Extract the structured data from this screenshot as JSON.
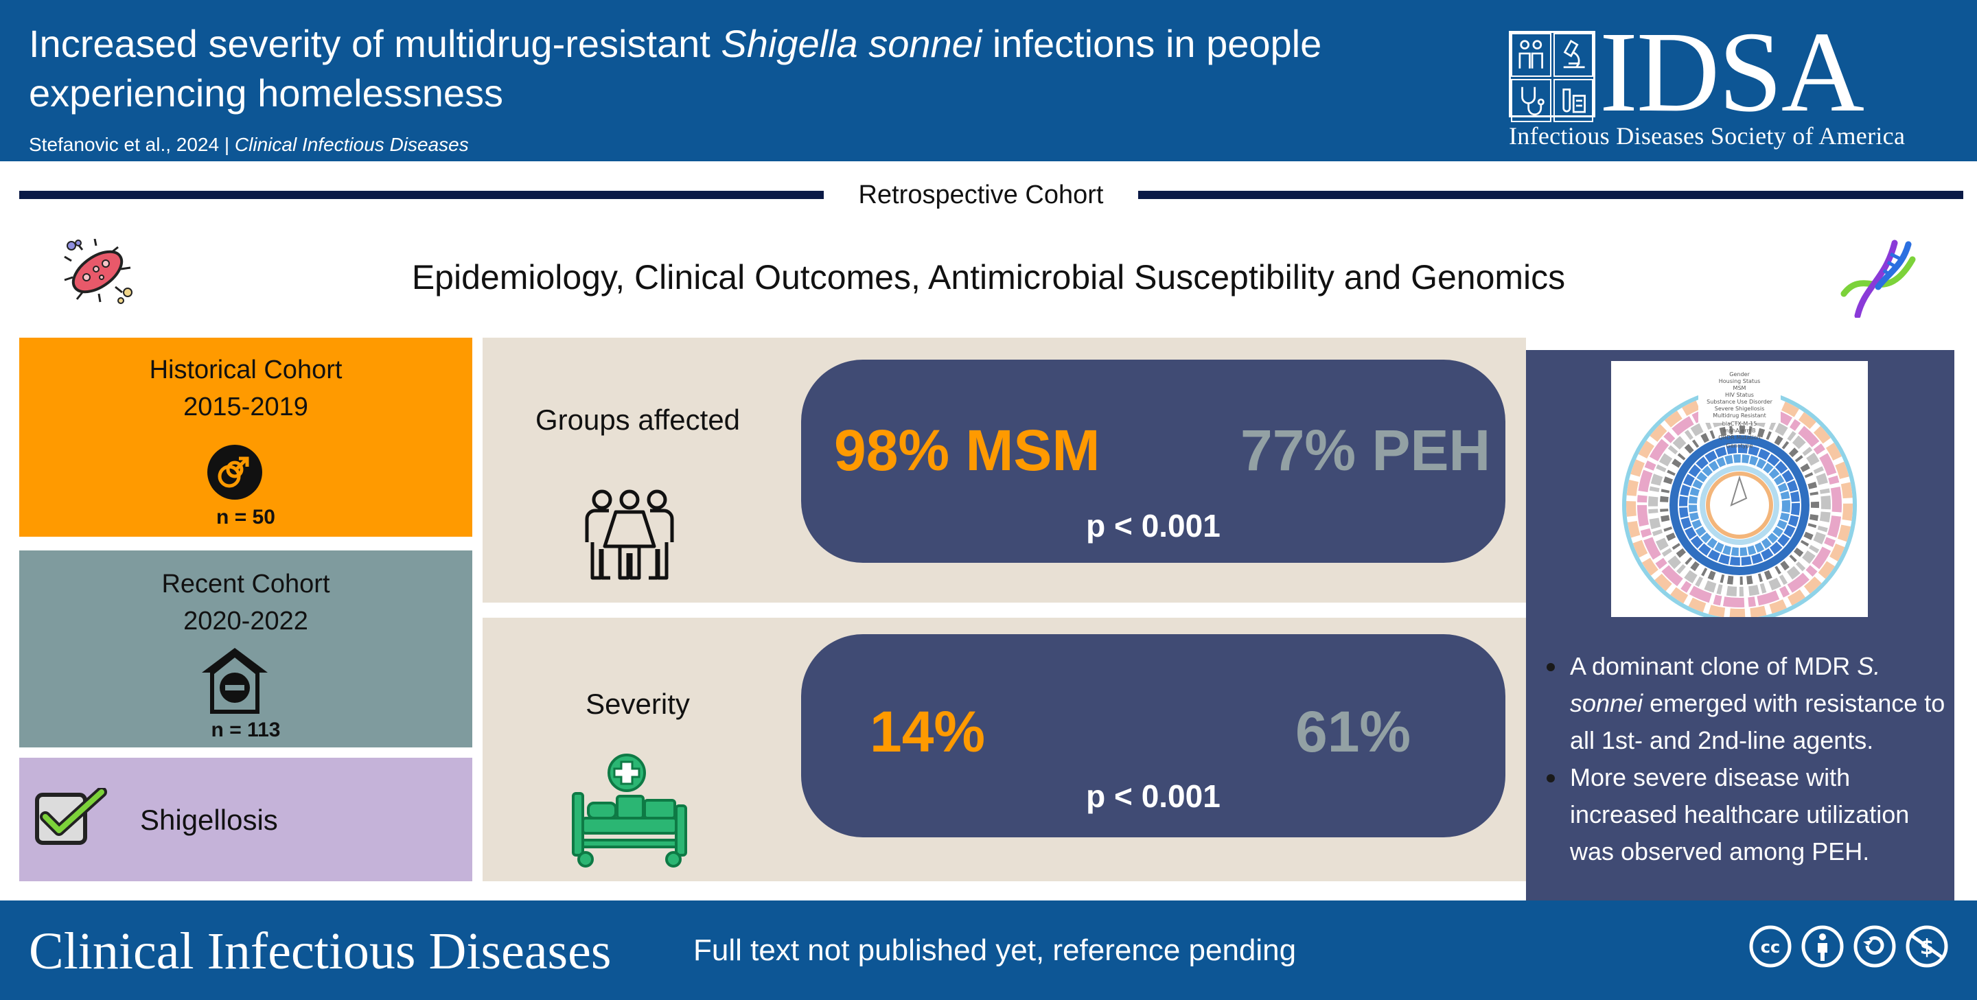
{
  "header": {
    "title_part1": "Increased severity of multidrug-resistant ",
    "title_italic": "Shigella sonnei",
    "title_part2": " infections in people experiencing homelessness",
    "citation_authors": "Stefanovic et al., 2024",
    "citation_separator": "|",
    "citation_journal": "Clinical Infectious Diseases"
  },
  "logo": {
    "acronym": "IDSA",
    "full_name": "Infectious Diseases Society of America"
  },
  "study_design": "Retrospective Cohort",
  "subheading": "Epidemiology, Clinical Outcomes, Antimicrobial Susceptibility and Genomics",
  "cohorts": {
    "historical": {
      "title": "Historical Cohort",
      "years": "2015-2019",
      "n": "n = 50",
      "icon": "gender-symbol-icon"
    },
    "recent": {
      "title": "Recent Cohort",
      "years": "2020-2022",
      "n": "n = 113",
      "icon": "homeless-house-icon"
    },
    "condition": {
      "label": "Shigellosis",
      "icon": "checkbox-icon"
    }
  },
  "groups_affected": {
    "label": "Groups affected",
    "historical_stat": "98% MSM",
    "recent_stat": "77% PEH",
    "p_value": "p < 0.001"
  },
  "severity": {
    "label": "Severity",
    "historical_stat": "14%",
    "recent_stat": "61%",
    "p_value": "p < 0.001"
  },
  "summary": {
    "bullet1_part1": "A dominant clone of MDR ",
    "bullet1_italic": "S. sonnei",
    "bullet1_part2": "  emerged with resistance to all 1st- and 2nd-line agents.",
    "bullet2": "More severe disease with increased healthcare utilization was observed among PEH."
  },
  "footer": {
    "journal": "Clinical Infectious Diseases",
    "note": "Full text not published yet, reference pending",
    "license_icons": [
      "cc-icon",
      "attribution-icon",
      "sharealike-icon",
      "noncommercial-icon"
    ]
  },
  "colors": {
    "header_blue": "#0d5695",
    "historical_orange": "#ff9a00",
    "recent_gray": "#7f9b9e",
    "condition_lavender": "#c5b3d9",
    "panel_beige": "#e8e0d4",
    "pill_navy": "#404b74",
    "divider_navy": "#0b1a46"
  }
}
